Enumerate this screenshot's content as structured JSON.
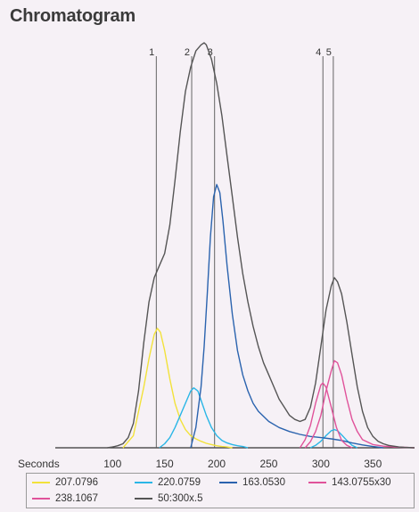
{
  "chart_data": {
    "type": "line",
    "title": "Chromatogram",
    "xlabel": "Seconds",
    "xlim": [
      45,
      390
    ],
    "ylim": [
      0,
      100
    ],
    "xticks": [
      100,
      150,
      200,
      250,
      300,
      350
    ],
    "markers": [
      {
        "label": "1",
        "x": 142
      },
      {
        "label": "2",
        "x": 176
      },
      {
        "label": "3",
        "x": 198
      },
      {
        "label": "4",
        "x": 302
      },
      {
        "label": "5",
        "x": 312
      }
    ],
    "series": [
      {
        "name": "207.0796",
        "color": "#f2e23a",
        "x": [
          110,
          120,
          130,
          135,
          140,
          143,
          146,
          150,
          155,
          160,
          165,
          170,
          175,
          180,
          185,
          190,
          195,
          200,
          205,
          210,
          215
        ],
        "y": [
          0,
          3,
          15,
          22,
          28,
          29.5,
          28.5,
          24,
          17,
          11,
          7,
          4.5,
          3,
          2.2,
          1.6,
          1.1,
          0.8,
          0.5,
          0.3,
          0.2,
          0
        ]
      },
      {
        "name": "220.0759",
        "color": "#2ab6e6",
        "x": [
          145,
          150,
          155,
          160,
          165,
          170,
          175,
          178,
          182,
          186,
          190,
          195,
          200,
          205,
          210,
          215,
          220,
          225,
          230
        ],
        "y": [
          0,
          1,
          2.5,
          5,
          8,
          11,
          14,
          14.8,
          14,
          11,
          8,
          5,
          3,
          1.8,
          1.2,
          0.8,
          0.5,
          0.3,
          0
        ],
        "x2": [
          290,
          295,
          300,
          305,
          310,
          313,
          316,
          320,
          325,
          330,
          335
        ],
        "y2": [
          0,
          0.6,
          1.6,
          3,
          4.2,
          4.5,
          4.2,
          3.2,
          1.8,
          0.6,
          0
        ]
      },
      {
        "name": "163.0530",
        "color": "#2a63ae",
        "x": [
          175,
          180,
          185,
          188,
          191,
          194,
          197,
          200,
          203,
          206,
          210,
          215,
          220,
          225,
          230,
          235,
          240,
          250,
          260,
          270,
          280,
          290,
          300,
          310,
          320,
          330,
          340,
          350,
          360
        ],
        "y": [
          0,
          5,
          15,
          25,
          38,
          52,
          62,
          65,
          63,
          56,
          45,
          33,
          24,
          18,
          14,
          11,
          9,
          6.5,
          5,
          4,
          3.3,
          2.8,
          2.5,
          2.2,
          1.8,
          1.2,
          0.7,
          0.3,
          0
        ]
      },
      {
        "name": "143.0755x30",
        "color": "#e0529a",
        "x": [
          280,
          285,
          290,
          295,
          300,
          302,
          305,
          310,
          315,
          320,
          325,
          330
        ],
        "y": [
          0,
          2,
          5.5,
          11,
          15.5,
          16,
          15,
          10,
          5,
          1.8,
          0.6,
          0
        ]
      },
      {
        "name": "238.1067",
        "color": "#e0529a",
        "x": [
          285,
          290,
          295,
          300,
          305,
          310,
          313,
          316,
          320,
          325,
          330,
          335,
          340,
          350,
          360,
          370,
          380,
          390
        ],
        "y": [
          0,
          1.5,
          4,
          8,
          14,
          19,
          21.5,
          21,
          18,
          12,
          7,
          4,
          2,
          0.8,
          0.4,
          0.2,
          0.1,
          0
        ]
      },
      {
        "name": "50:300x.5",
        "color": "#555555",
        "x": [
          95,
          100,
          105,
          110,
          115,
          120,
          125,
          130,
          135,
          140,
          145,
          150,
          155,
          160,
          165,
          170,
          175,
          180,
          185,
          188,
          190,
          195,
          200,
          205,
          210,
          215,
          220,
          225,
          230,
          235,
          240,
          245,
          250,
          255,
          260,
          265,
          270,
          275,
          280,
          285,
          290,
          295,
          300,
          305,
          310,
          313,
          316,
          320,
          325,
          330,
          335,
          340,
          345,
          350,
          355,
          360,
          365,
          370,
          375,
          380,
          390
        ],
        "y": [
          0,
          0.2,
          0.5,
          1,
          2.5,
          6,
          14,
          26,
          36,
          42,
          45,
          48,
          55,
          66,
          78,
          88,
          94,
          98,
          99.5,
          100,
          99.5,
          96,
          90,
          82,
          72,
          62,
          52,
          43,
          36,
          30,
          25,
          21,
          18,
          15,
          12,
          10,
          8,
          7,
          6.5,
          7,
          10,
          16,
          25,
          34,
          40,
          42,
          41,
          38,
          31,
          23,
          15,
          9,
          5,
          2.8,
          1.6,
          1,
          0.6,
          0.4,
          0.2,
          0.1,
          0
        ]
      }
    ]
  },
  "legend": {
    "items": [
      {
        "label": "207.0796",
        "color": "#f2e23a"
      },
      {
        "label": "220.0759",
        "color": "#2ab6e6"
      },
      {
        "label": "163.0530",
        "color": "#2a63ae"
      },
      {
        "label": "143.0755x30",
        "color": "#e0529a"
      },
      {
        "label": "238.1067",
        "color": "#e0529a"
      },
      {
        "label": "50:300x.5",
        "color": "#555555"
      }
    ]
  }
}
